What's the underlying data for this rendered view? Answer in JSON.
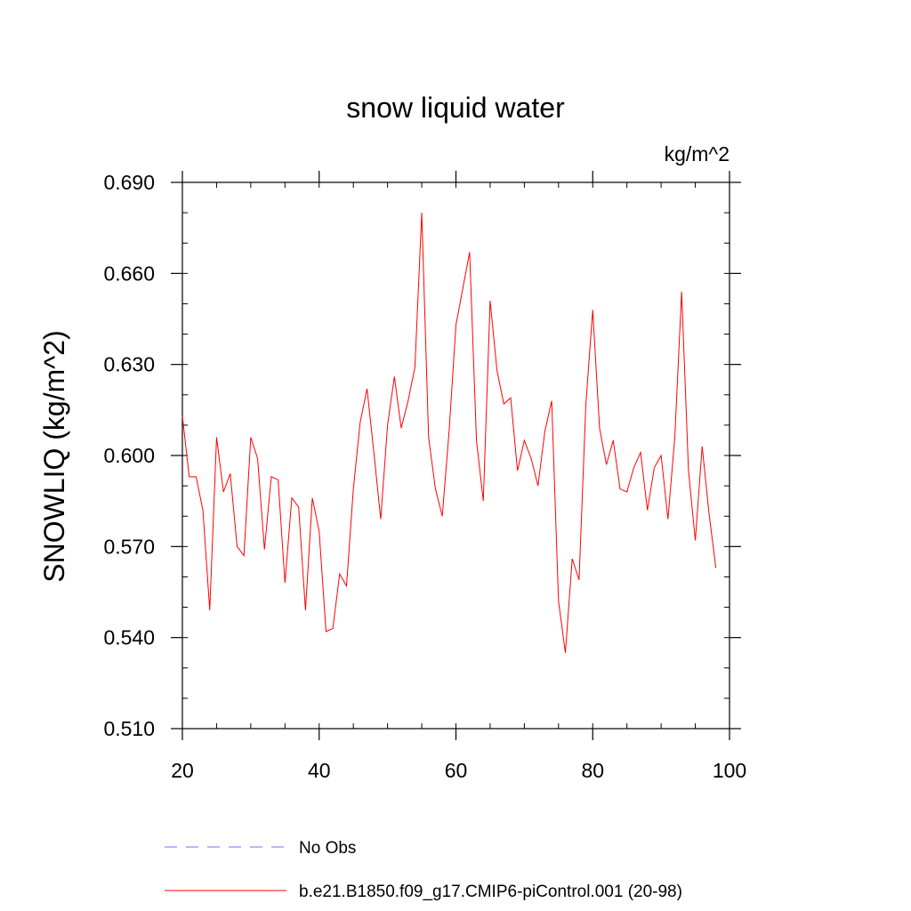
{
  "chart_data": {
    "type": "line",
    "title": "snow liquid water",
    "units": "kg/m^2",
    "ylabel": "SNOWLIQ  (kg/m^2)",
    "xlabel": "",
    "xlim": [
      20,
      100
    ],
    "ylim": [
      0.51,
      0.69
    ],
    "x_ticks": [
      "20",
      "40",
      "60",
      "80",
      "100"
    ],
    "y_ticks": [
      "0.510",
      "0.540",
      "0.570",
      "0.600",
      "0.630",
      "0.660",
      "0.690"
    ],
    "grid": false,
    "legend_position": "bottom",
    "series": [
      {
        "name": "No Obs",
        "color": "#7b68ee",
        "dash": "dashed",
        "x": [],
        "y": []
      },
      {
        "name": "b.e21.B1850.f09_g17.CMIP6-piControl.001 (20-98)",
        "color": "#ff0000",
        "dash": "solid",
        "x": [
          20,
          21,
          22,
          23,
          24,
          25,
          26,
          27,
          28,
          29,
          30,
          31,
          32,
          33,
          34,
          35,
          36,
          37,
          38,
          39,
          40,
          41,
          42,
          43,
          44,
          45,
          46,
          47,
          48,
          49,
          50,
          51,
          52,
          53,
          54,
          55,
          56,
          57,
          58,
          59,
          60,
          61,
          62,
          63,
          64,
          65,
          66,
          67,
          68,
          69,
          70,
          71,
          72,
          73,
          74,
          75,
          76,
          77,
          78,
          79,
          80,
          81,
          82,
          83,
          84,
          85,
          86,
          87,
          88,
          89,
          90,
          91,
          92,
          93,
          94,
          95,
          96,
          97,
          98
        ],
        "y": [
          0.613,
          0.593,
          0.593,
          0.582,
          0.549,
          0.606,
          0.588,
          0.594,
          0.57,
          0.567,
          0.606,
          0.599,
          0.569,
          0.593,
          0.592,
          0.558,
          0.586,
          0.583,
          0.549,
          0.586,
          0.575,
          0.542,
          0.543,
          0.561,
          0.557,
          0.589,
          0.611,
          0.622,
          0.601,
          0.579,
          0.61,
          0.626,
          0.609,
          0.618,
          0.629,
          0.68,
          0.606,
          0.589,
          0.58,
          0.608,
          0.643,
          0.655,
          0.667,
          0.605,
          0.585,
          0.651,
          0.628,
          0.617,
          0.619,
          0.595,
          0.605,
          0.599,
          0.59,
          0.608,
          0.618,
          0.552,
          0.535,
          0.566,
          0.559,
          0.617,
          0.648,
          0.609,
          0.597,
          0.605,
          0.589,
          0.588,
          0.596,
          0.601,
          0.582,
          0.596,
          0.6,
          0.579,
          0.606,
          0.654,
          0.595,
          0.572,
          0.603,
          0.581,
          0.563
        ]
      }
    ]
  }
}
